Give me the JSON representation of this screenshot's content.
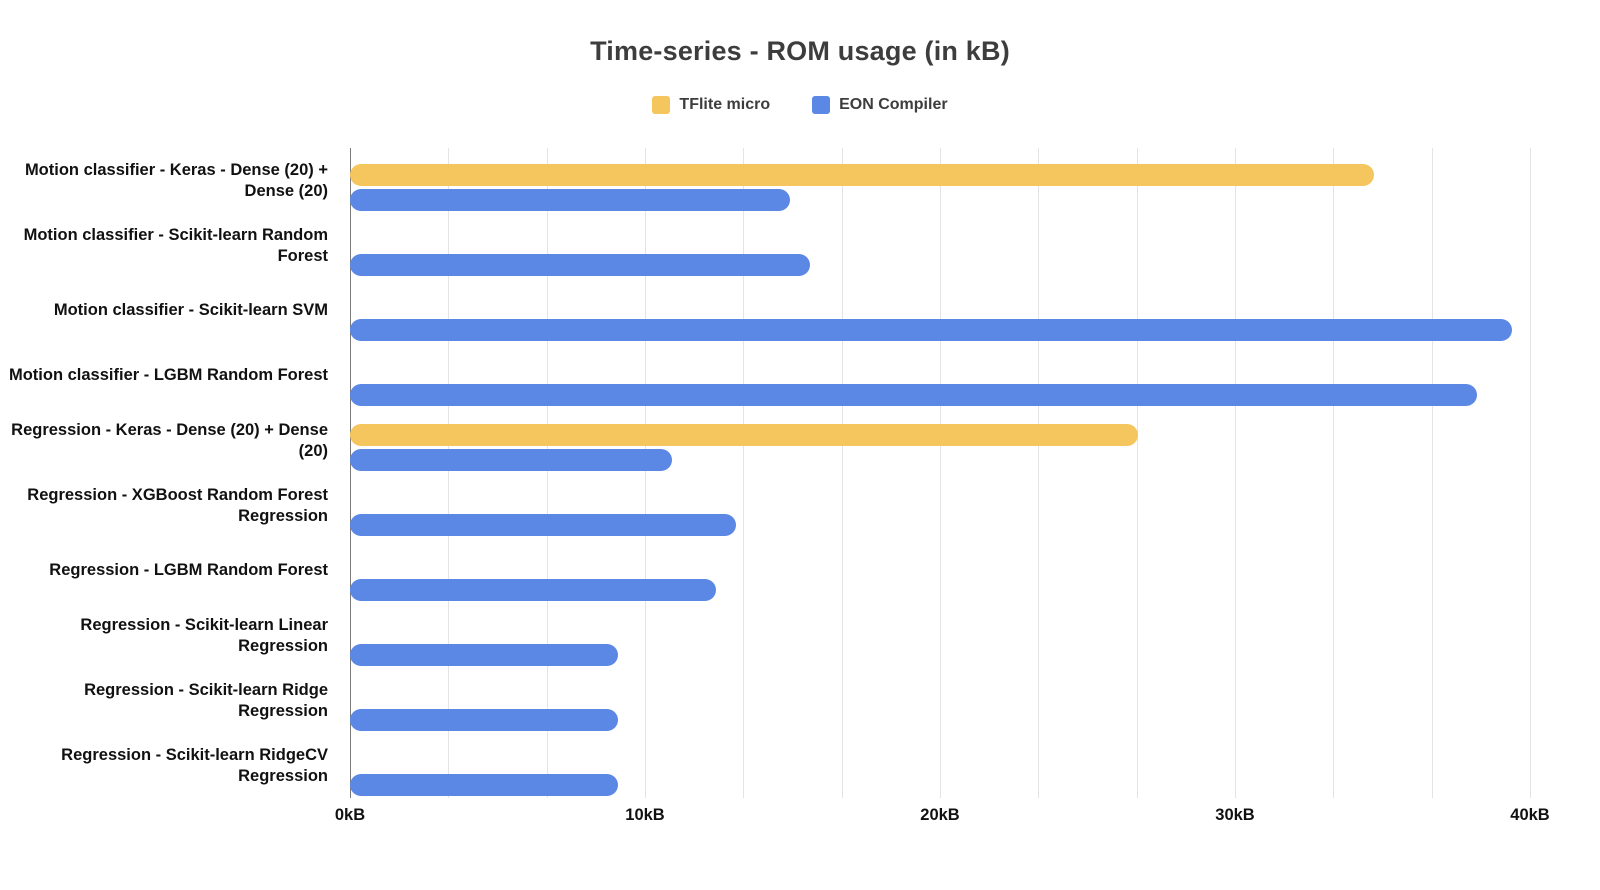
{
  "title": "Time-series - ROM usage (in kB)",
  "legend": {
    "items": [
      {
        "label": "TFlite micro",
        "color": "#F6C65E",
        "icon": "legend-swatch-square"
      },
      {
        "label": "EON Compiler",
        "color": "#5B87E5",
        "icon": "legend-swatch-square"
      }
    ]
  },
  "chart_data": {
    "type": "bar",
    "orientation": "horizontal",
    "title": "Time-series - ROM usage (in kB)",
    "xlabel": "",
    "ylabel": "",
    "xlim": [
      0,
      40
    ],
    "x_tick_labels": [
      "0kB",
      "10kB",
      "20kB",
      "30kB",
      "40kB"
    ],
    "x_tick_values": [
      0,
      10,
      20,
      30,
      40
    ],
    "minor_gridline_divisions": 12,
    "grid": true,
    "legend_position": "top",
    "grid_color": "#e4e4e4",
    "axis_color": "#7a7a7a",
    "text_color": "#111111",
    "title_color": "#3d3d3d",
    "categories": [
      "Motion classifier - Keras - Dense (20) + Dense (20)",
      "Motion classifier  - Scikit-learn Random Forest",
      "Motion classifier  - Scikit-learn SVM",
      "Motion classifier - LGBM Random Forest",
      "Regression - Keras - Dense (20) + Dense (20)",
      "Regression - XGBoost Random Forest Regression",
      "Regression - LGBM Random Forest",
      "Regression - Scikit-learn Linear Regression",
      "Regression - Scikit-learn Ridge Regression",
      "Regression - Scikit-learn RidgeCV Regression"
    ],
    "series": [
      {
        "name": "TFlite micro",
        "color": "#F6C65E",
        "values": [
          34.7,
          null,
          null,
          null,
          26.7,
          null,
          null,
          null,
          null,
          null
        ]
      },
      {
        "name": "EON Compiler",
        "color": "#5B87E5",
        "values": [
          14.9,
          15.6,
          39.4,
          38.2,
          10.9,
          13.1,
          12.4,
          9.1,
          9.1,
          9.1
        ]
      }
    ]
  }
}
